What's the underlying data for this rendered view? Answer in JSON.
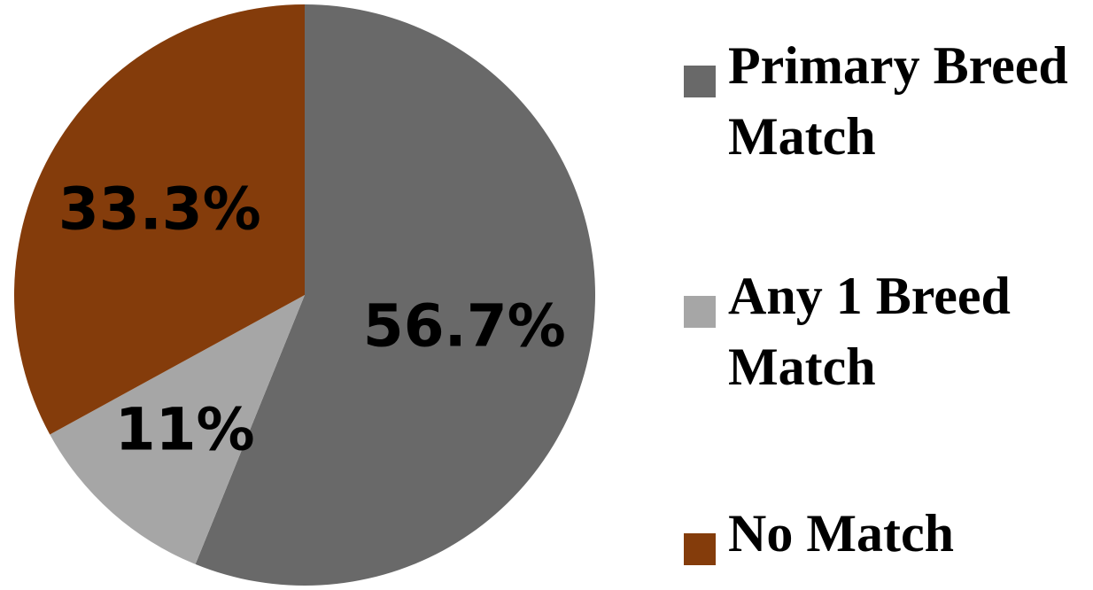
{
  "chart_data": {
    "type": "pie",
    "slices": [
      {
        "name": "Primary Breed Match",
        "value": 56.7,
        "label": "56.7%",
        "color": "#696969"
      },
      {
        "name": "Any 1 Breed Match",
        "value": 11,
        "label": "11%",
        "color": "#a6a6a6"
      },
      {
        "name": "No Match",
        "value": 33.3,
        "label": "33.3%",
        "color": "#843c0b"
      }
    ],
    "start": "12 o'clock",
    "direction": "clockwise",
    "legend_position": "right"
  },
  "legend": {
    "items": [
      {
        "label": "Primary Breed Match",
        "color": "#696969"
      },
      {
        "label": "Any 1 Breed Match",
        "color": "#a6a6a6"
      },
      {
        "label": "No Match",
        "color": "#843c0b"
      }
    ]
  }
}
